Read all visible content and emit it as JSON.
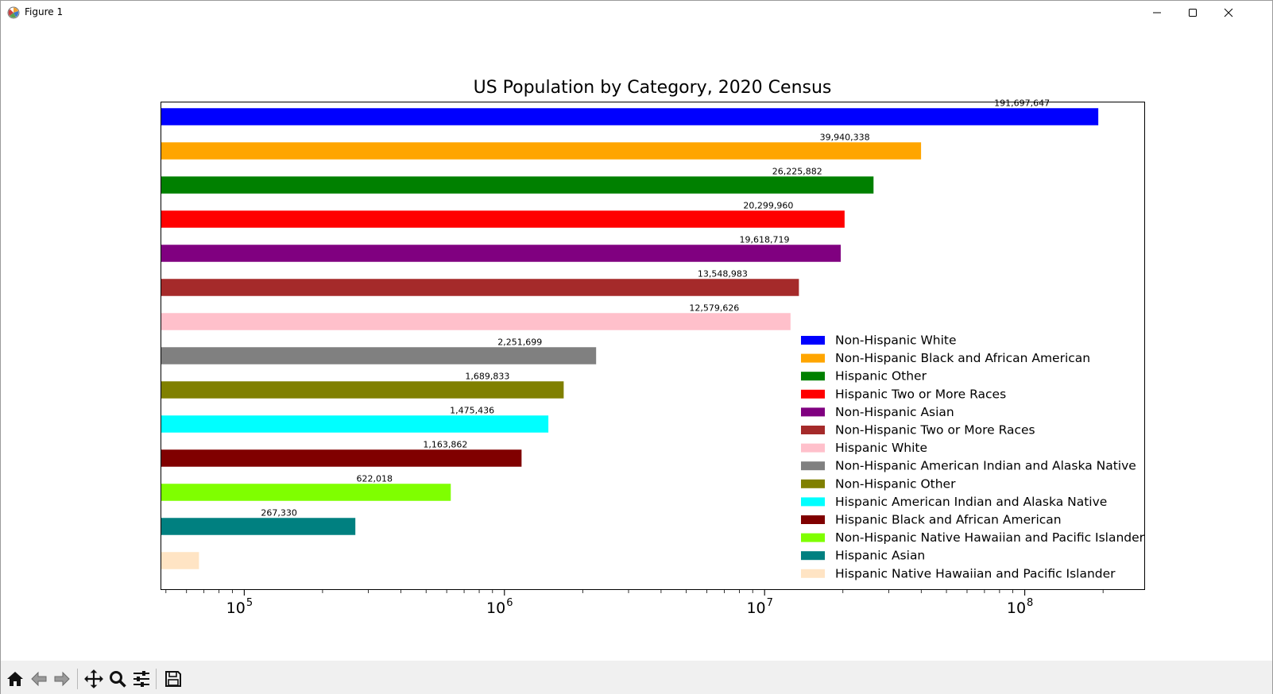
{
  "window": {
    "title": "Figure 1",
    "buttons": [
      "minimize",
      "maximize",
      "close"
    ]
  },
  "toolbar": {
    "buttons": [
      {
        "name": "home-button",
        "icon": "home-icon"
      },
      {
        "name": "back-button",
        "icon": "arrow-left-icon"
      },
      {
        "name": "forward-button",
        "icon": "arrow-right-icon"
      },
      {
        "name": "pan-button",
        "icon": "move-icon"
      },
      {
        "name": "zoom-button",
        "icon": "magnifier-icon"
      },
      {
        "name": "configure-subplots-button",
        "icon": "sliders-icon"
      },
      {
        "name": "save-button",
        "icon": "floppy-disk-icon"
      }
    ]
  },
  "chart_data": {
    "type": "bar",
    "orientation": "horizontal",
    "title": "US Population by Category, 2020 Census",
    "xlabel": "",
    "ylabel": "",
    "xscale": "log",
    "xlim": [
      48000,
      290000000
    ],
    "xticks": [
      {
        "value": 100000,
        "base": "10",
        "exp": "5"
      },
      {
        "value": 1000000,
        "base": "10",
        "exp": "6"
      },
      {
        "value": 10000000,
        "base": "10",
        "exp": "7"
      },
      {
        "value": 100000000,
        "base": "10",
        "exp": "8"
      }
    ],
    "legend_position": "lower right",
    "grid": false,
    "categories": [
      "Non-Hispanic White",
      "Non-Hispanic Black and African American",
      "Hispanic Other",
      "Hispanic Two or More Races",
      "Non-Hispanic Asian",
      "Non-Hispanic Two or More Races",
      "Hispanic White",
      "Non-Hispanic American Indian and Alaska Native",
      "Non-Hispanic Other",
      "Hispanic American Indian and Alaska Native",
      "Hispanic Black and African American",
      "Non-Hispanic Native Hawaiian and Pacific Islander",
      "Hispanic Asian",
      "Hispanic Native Hawaiian and Pacific Islander"
    ],
    "values": [
      191697647,
      39940338,
      26225882,
      20299960,
      19618719,
      13548983,
      12579626,
      2251699,
      1689833,
      1475436,
      1163862,
      622018,
      267330,
      67000
    ],
    "value_labels": [
      "191,697,647",
      "39,940,338",
      "26,225,882",
      "20,299,960",
      "19,618,719",
      "13,548,983",
      "12,579,626",
      "2,251,699",
      "1,689,833",
      "1,475,436",
      "1,163,862",
      "622,018",
      "267,330",
      ""
    ],
    "colors": [
      "#0000ff",
      "#ffa500",
      "#008000",
      "#ff0000",
      "#800080",
      "#a52a2a",
      "#ffc0cb",
      "#808080",
      "#808000",
      "#00ffff",
      "#800000",
      "#7fff00",
      "#008080",
      "#ffe4c4"
    ]
  }
}
